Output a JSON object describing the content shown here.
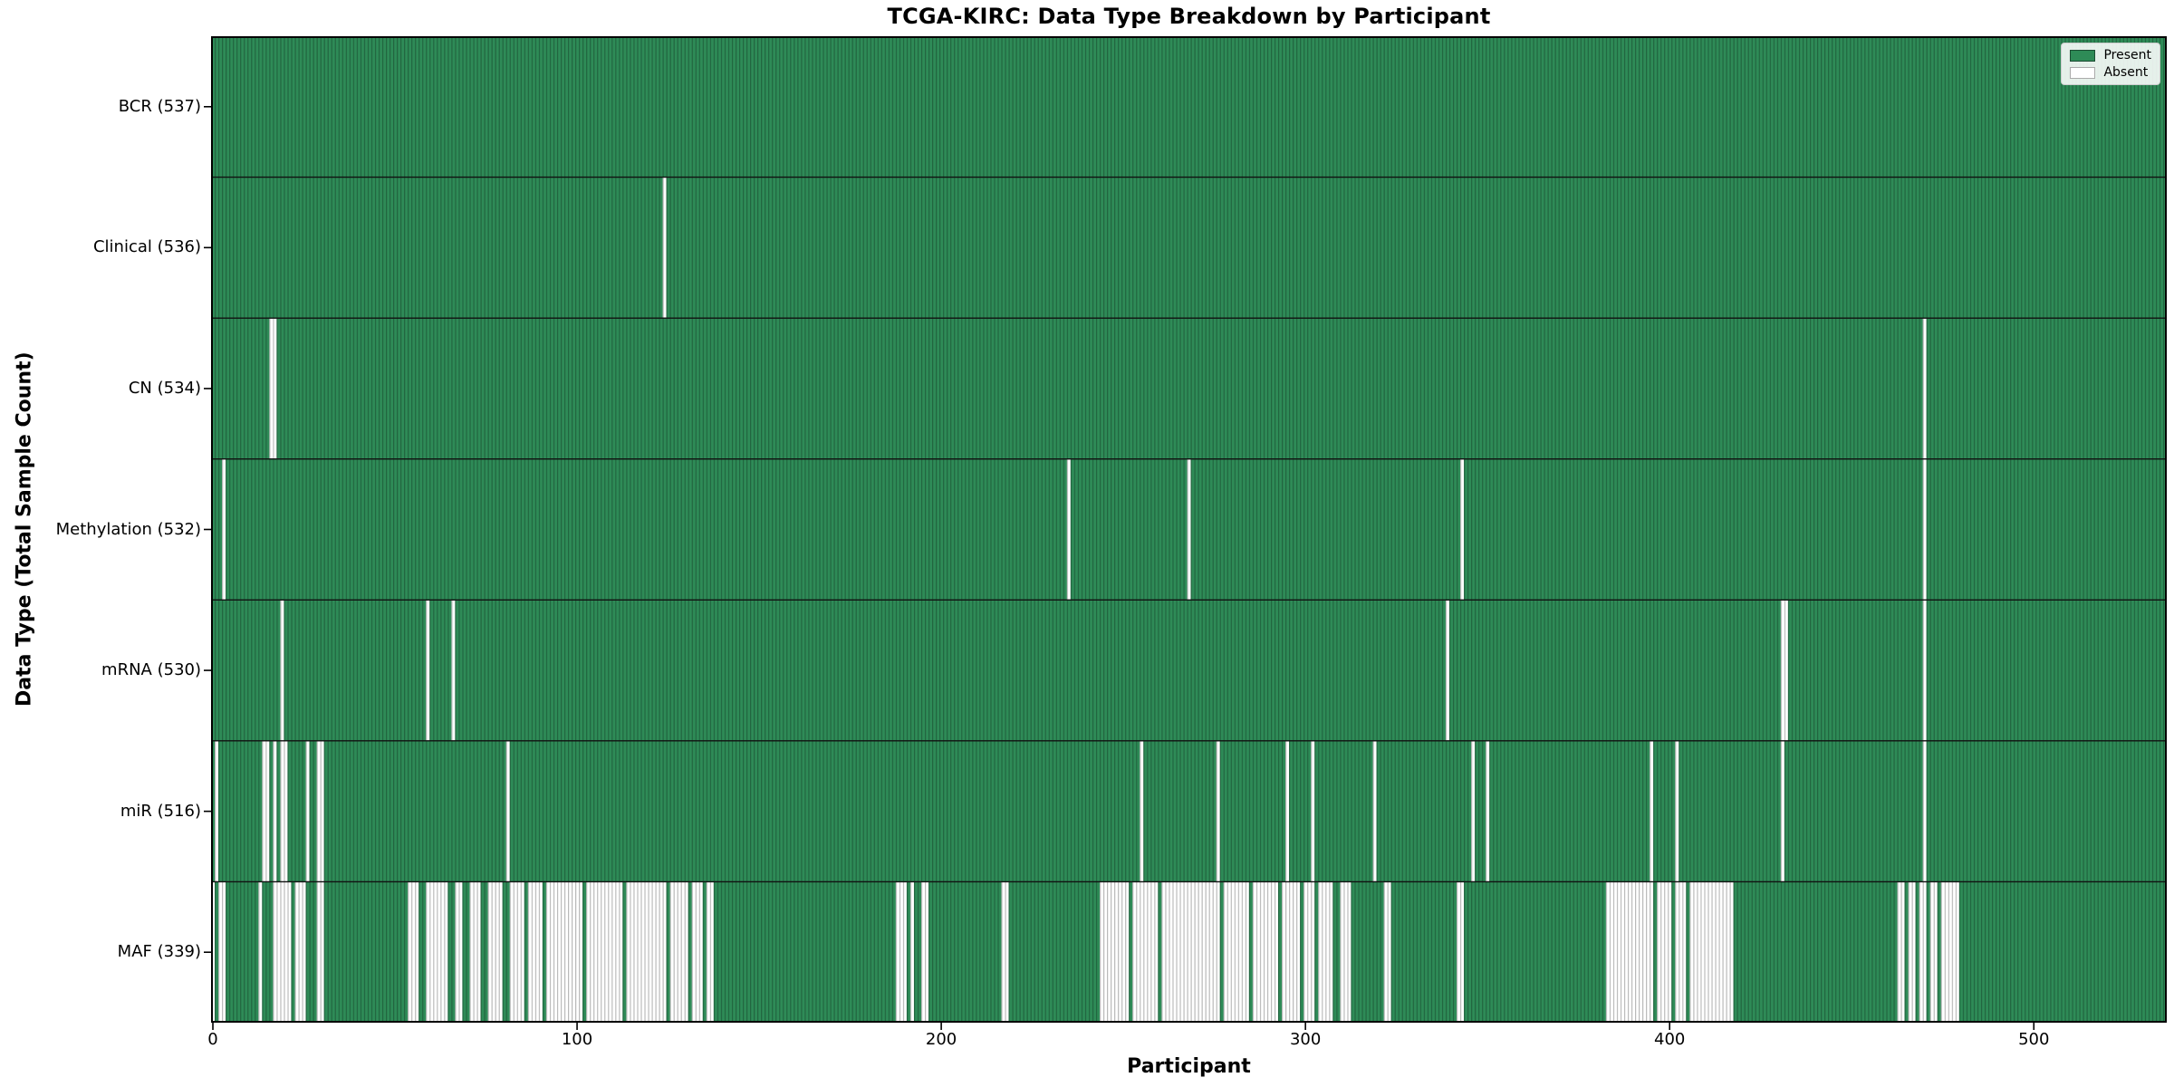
{
  "chart_data": {
    "type": "heatmap",
    "title": "TCGA-KIRC: Data Type Breakdown by Participant",
    "xlabel": "Participant",
    "ylabel": "Data Type (Total Sample Count)",
    "n_participants": 537,
    "x_ticks": [
      0,
      100,
      200,
      300,
      400,
      500
    ],
    "x_range": [
      -0.5,
      536.5
    ],
    "grid": false,
    "legend": {
      "position": "upper-right",
      "items": [
        {
          "label": "Present",
          "color": "#2e8b57",
          "edge": "#1b4d32"
        },
        {
          "label": "Absent",
          "color": "#ffffff",
          "edge": "#aaaaaa"
        }
      ]
    },
    "colors": {
      "present": "#2e8b57",
      "absent": "#ffffff",
      "bar_edge": "#000000",
      "bar_edge_opacity": 0.28,
      "row_separator": "#111111",
      "plot_border": "#000000",
      "background": "#ffffff"
    },
    "rows": [
      {
        "label": "BCR",
        "total": 537,
        "tick_label": "BCR (537)",
        "absent_ranges": []
      },
      {
        "label": "Clinical",
        "total": 536,
        "tick_label": "Clinical (536)",
        "absent_ranges": [
          [
            124,
            124
          ]
        ]
      },
      {
        "label": "CN",
        "total": 534,
        "tick_label": "CN (534)",
        "absent_ranges": [
          [
            16,
            17
          ],
          [
            470,
            470
          ]
        ]
      },
      {
        "label": "Methylation",
        "total": 532,
        "tick_label": "Methylation (532)",
        "absent_ranges": [
          [
            3,
            3
          ],
          [
            235,
            235
          ],
          [
            268,
            268
          ],
          [
            343,
            343
          ],
          [
            470,
            470
          ]
        ]
      },
      {
        "label": "mRNA",
        "total": 530,
        "tick_label": "mRNA (530)",
        "absent_ranges": [
          [
            19,
            19
          ],
          [
            59,
            59
          ],
          [
            66,
            66
          ],
          [
            339,
            339
          ],
          [
            431,
            432
          ],
          [
            470,
            470
          ]
        ]
      },
      {
        "label": "miR",
        "total": 516,
        "tick_label": "miR (516)",
        "absent_ranges": [
          [
            1,
            1
          ],
          [
            14,
            15
          ],
          [
            17,
            17
          ],
          [
            19,
            20
          ],
          [
            26,
            26
          ],
          [
            29,
            30
          ],
          [
            81,
            81
          ],
          [
            255,
            255
          ],
          [
            276,
            276
          ],
          [
            295,
            295
          ],
          [
            302,
            302
          ],
          [
            319,
            319
          ],
          [
            346,
            346
          ],
          [
            350,
            350
          ],
          [
            395,
            395
          ],
          [
            402,
            402
          ],
          [
            431,
            431
          ],
          [
            470,
            470
          ]
        ]
      },
      {
        "label": "MAF",
        "total": 339,
        "tick_label": "MAF (339)",
        "absent_ranges": [
          [
            0,
            0
          ],
          [
            2,
            3
          ],
          [
            13,
            13
          ],
          [
            17,
            21
          ],
          [
            23,
            25
          ],
          [
            29,
            30
          ],
          [
            54,
            56
          ],
          [
            59,
            64
          ],
          [
            67,
            68
          ],
          [
            71,
            73
          ],
          [
            76,
            79
          ],
          [
            82,
            85
          ],
          [
            87,
            90
          ],
          [
            92,
            101
          ],
          [
            103,
            112
          ],
          [
            114,
            124
          ],
          [
            126,
            130
          ],
          [
            132,
            134
          ],
          [
            136,
            137
          ],
          [
            188,
            190
          ],
          [
            192,
            192
          ],
          [
            195,
            196
          ],
          [
            217,
            218
          ],
          [
            244,
            251
          ],
          [
            253,
            259
          ],
          [
            261,
            276
          ],
          [
            278,
            284
          ],
          [
            286,
            292
          ],
          [
            294,
            298
          ],
          [
            300,
            302
          ],
          [
            304,
            307
          ],
          [
            310,
            312
          ],
          [
            322,
            323
          ],
          [
            342,
            343
          ],
          [
            383,
            395
          ],
          [
            397,
            400
          ],
          [
            402,
            404
          ],
          [
            406,
            417
          ],
          [
            463,
            464
          ],
          [
            466,
            467
          ],
          [
            469,
            470
          ],
          [
            472,
            473
          ],
          [
            475,
            479
          ]
        ]
      }
    ]
  }
}
